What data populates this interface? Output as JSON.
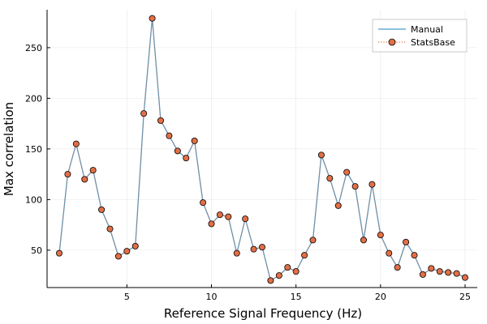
{
  "chart_data": {
    "type": "line",
    "title": "",
    "xlabel": "Reference Signal Frequency (Hz)",
    "ylabel": "Max correlation",
    "xlim": [
      0.28,
      25.72
    ],
    "ylim": [
      13.1,
      287.5
    ],
    "xticks": [
      5,
      10,
      15,
      20,
      25
    ],
    "xtick_labels": [
      "5",
      "10",
      "15",
      "20",
      "25"
    ],
    "yticks": [
      50,
      100,
      150,
      200,
      250
    ],
    "ytick_labels": [
      "50",
      "100",
      "150",
      "200",
      "250"
    ],
    "grid": true,
    "legend_position": "top-right",
    "x": [
      1.0,
      1.5,
      2.0,
      2.5,
      3.0,
      3.5,
      4.0,
      4.5,
      5.0,
      5.5,
      6.0,
      6.5,
      7.0,
      7.5,
      8.0,
      8.5,
      9.0,
      9.5,
      10.0,
      10.5,
      11.0,
      11.5,
      12.0,
      12.5,
      13.0,
      13.5,
      14.0,
      14.5,
      15.0,
      15.5,
      16.0,
      16.5,
      17.0,
      17.5,
      18.0,
      18.5,
      19.0,
      19.5,
      20.0,
      20.5,
      21.0,
      21.5,
      22.0,
      22.5,
      23.0,
      23.5,
      24.0,
      24.5,
      25.0
    ],
    "series": [
      {
        "name": "Manual",
        "style": "line",
        "color": "#4a9cc9",
        "values": [
          47,
          125,
          155,
          120,
          129,
          90,
          71,
          44,
          49,
          54,
          185,
          279,
          178,
          163,
          148,
          141,
          158,
          97,
          76,
          85,
          83,
          47,
          81,
          51,
          53,
          20,
          25,
          33,
          29,
          45,
          60,
          144,
          121,
          94,
          127,
          113,
          60,
          115,
          65,
          47,
          33,
          58,
          45,
          26,
          32,
          29,
          28,
          27,
          23
        ]
      },
      {
        "name": "StatsBase",
        "style": "dotted-line-with-markers",
        "color": "#e26f46",
        "values": [
          47,
          125,
          155,
          120,
          129,
          90,
          71,
          44,
          49,
          54,
          185,
          279,
          178,
          163,
          148,
          141,
          158,
          97,
          76,
          85,
          83,
          47,
          81,
          51,
          53,
          20,
          25,
          33,
          29,
          45,
          60,
          144,
          121,
          94,
          127,
          113,
          60,
          115,
          65,
          47,
          33,
          58,
          45,
          26,
          32,
          29,
          28,
          27,
          23
        ]
      }
    ]
  }
}
